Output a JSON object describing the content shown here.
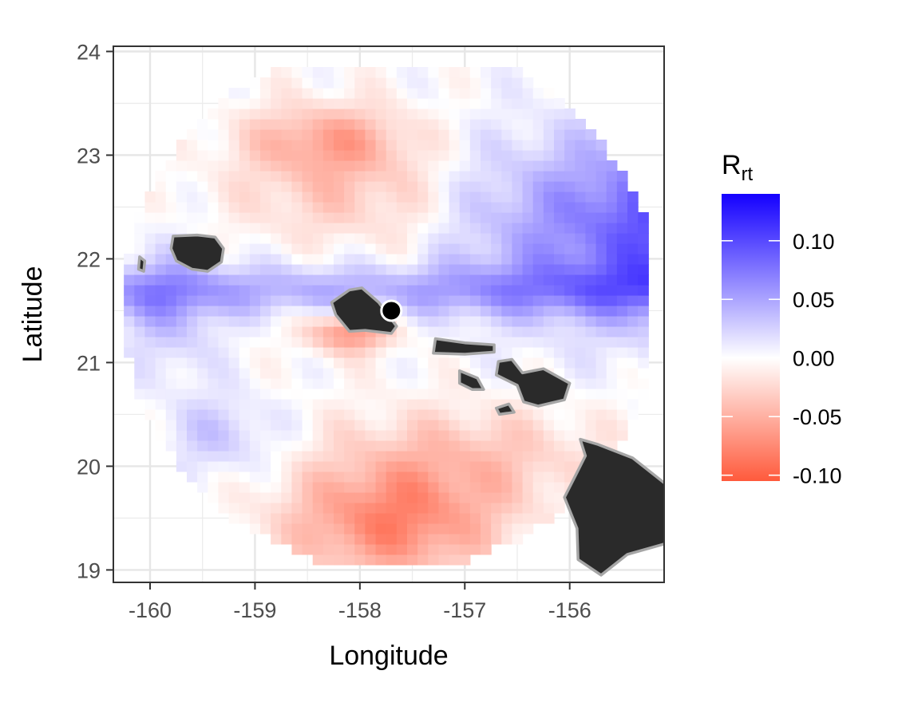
{
  "chart_data": {
    "type": "heatmap",
    "xlabel": "Longitude",
    "ylabel": "Latitude",
    "xlim": [
      -160.35,
      -155.1
    ],
    "ylim": [
      18.88,
      24.05
    ],
    "x_ticks": [
      -160,
      -159,
      -158,
      -157,
      -156
    ],
    "y_ticks": [
      19,
      20,
      21,
      22,
      23,
      24
    ],
    "x_tick_labels": [
      "-160",
      "-159",
      "-158",
      "-157",
      "-156"
    ],
    "y_tick_labels": [
      "19",
      "20",
      "21",
      "22",
      "23",
      "24"
    ],
    "grid": true,
    "cell_size_deg": 0.1,
    "domain_center": [
      -157.7,
      21.55
    ],
    "domain_radius_deg": 2.55,
    "marker": {
      "lon": -157.7,
      "lat": 21.5,
      "color": "#000000"
    },
    "legend": {
      "title_main": "R",
      "title_sub": "rt",
      "position": "right",
      "range": [
        -0.105,
        0.14
      ],
      "ticks": [
        0.1,
        0.05,
        0.0,
        -0.05,
        -0.1
      ],
      "tick_labels": [
        "0.10",
        "0.05",
        "0.00",
        "-0.05",
        "-0.10"
      ],
      "color_low": "#ff5a3c",
      "color_mid": "#ffffff",
      "color_high": "#1400ff"
    },
    "islands": [
      {
        "name": "Kauai",
        "outline": [
          [
            -159.78,
            22.22
          ],
          [
            -159.55,
            22.23
          ],
          [
            -159.38,
            22.21
          ],
          [
            -159.3,
            22.1
          ],
          [
            -159.32,
            21.97
          ],
          [
            -159.45,
            21.88
          ],
          [
            -159.6,
            21.9
          ],
          [
            -159.75,
            21.98
          ],
          [
            -159.8,
            22.1
          ]
        ]
      },
      {
        "name": "Niihau",
        "outline": [
          [
            -160.1,
            22.02
          ],
          [
            -160.05,
            21.98
          ],
          [
            -160.06,
            21.88
          ],
          [
            -160.11,
            21.9
          ]
        ]
      },
      {
        "name": "Oahu",
        "outline": [
          [
            -158.27,
            21.58
          ],
          [
            -158.1,
            21.7
          ],
          [
            -157.98,
            21.72
          ],
          [
            -157.82,
            21.58
          ],
          [
            -157.65,
            21.35
          ],
          [
            -157.7,
            21.28
          ],
          [
            -157.95,
            21.31
          ],
          [
            -158.1,
            21.3
          ],
          [
            -158.23,
            21.46
          ]
        ]
      },
      {
        "name": "Molokai",
        "outline": [
          [
            -157.28,
            21.23
          ],
          [
            -157.0,
            21.19
          ],
          [
            -156.72,
            21.17
          ],
          [
            -156.72,
            21.1
          ],
          [
            -157.0,
            21.08
          ],
          [
            -157.3,
            21.09
          ]
        ]
      },
      {
        "name": "Lanai",
        "outline": [
          [
            -157.05,
            20.92
          ],
          [
            -156.88,
            20.85
          ],
          [
            -156.82,
            20.74
          ],
          [
            -156.93,
            20.74
          ],
          [
            -157.05,
            20.8
          ]
        ]
      },
      {
        "name": "Maui",
        "outline": [
          [
            -156.68,
            21.01
          ],
          [
            -156.55,
            21.03
          ],
          [
            -156.45,
            20.9
          ],
          [
            -156.25,
            20.94
          ],
          [
            -156.0,
            20.8
          ],
          [
            -156.05,
            20.64
          ],
          [
            -156.3,
            20.58
          ],
          [
            -156.44,
            20.62
          ],
          [
            -156.5,
            20.78
          ],
          [
            -156.7,
            20.88
          ]
        ]
      },
      {
        "name": "Kahoolawe",
        "outline": [
          [
            -156.7,
            20.56
          ],
          [
            -156.58,
            20.6
          ],
          [
            -156.53,
            20.52
          ],
          [
            -156.67,
            20.5
          ]
        ]
      },
      {
        "name": "Hawaii",
        "outline": [
          [
            -155.9,
            20.26
          ],
          [
            -155.73,
            20.21
          ],
          [
            -155.4,
            20.08
          ],
          [
            -155.05,
            19.8
          ],
          [
            -154.9,
            19.45
          ],
          [
            -155.1,
            19.25
          ],
          [
            -155.45,
            19.15
          ],
          [
            -155.7,
            18.95
          ],
          [
            -155.92,
            19.1
          ],
          [
            -155.93,
            19.4
          ],
          [
            -156.05,
            19.7
          ],
          [
            -155.95,
            19.9
          ],
          [
            -155.85,
            20.1
          ]
        ]
      }
    ]
  }
}
